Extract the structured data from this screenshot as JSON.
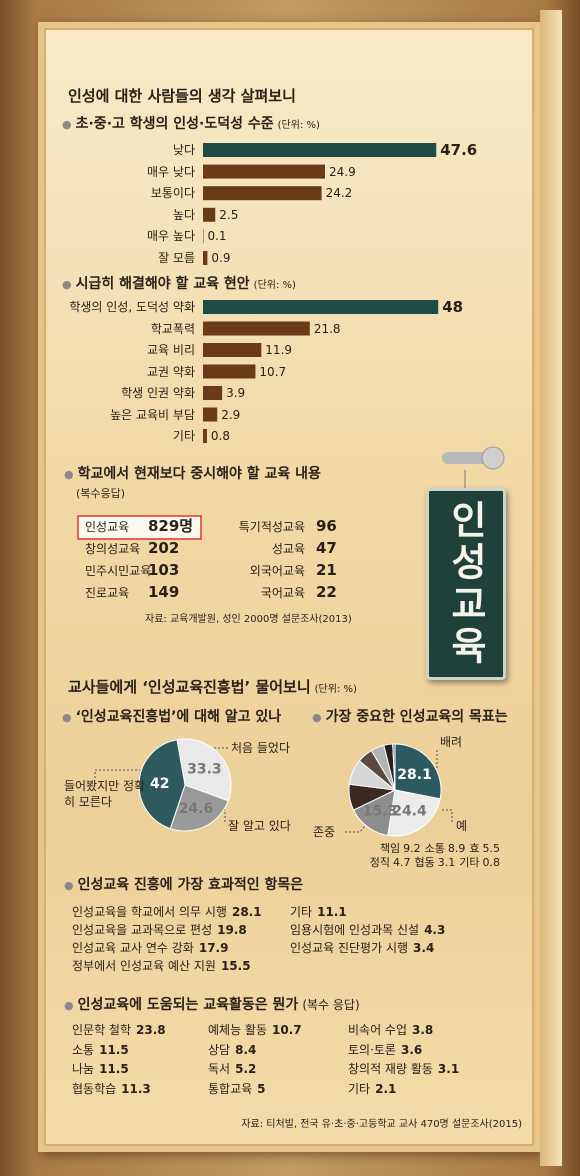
{
  "header": {
    "title": "인성에 대한 사람들의 생각 살펴보니",
    "subtitle": "교사들에게 ‘인성교육진흥법’ 물어보니",
    "subtitle_unit": "(단위: %)"
  },
  "chart_data": [
    {
      "type": "bar",
      "title": "초·중·고 학생의 인성·도덕성 수준",
      "unit": "(단위: %)",
      "categories": [
        "낮다",
        "매우 낮다",
        "보통이다",
        "높다",
        "매우 높다",
        "잘 모름"
      ],
      "values": [
        47.6,
        24.9,
        24.2,
        2.5,
        0.1,
        0.9
      ],
      "colors": [
        "#1f4d45",
        "#6b3a17",
        "#6b3a17",
        "#6b3a17",
        "#6b3a17",
        "#6b3a17"
      ]
    },
    {
      "type": "bar",
      "title": "시급히 해결해야 할 교육 현안",
      "unit": "(단위: %)",
      "categories": [
        "학생의 인성, 도덕성 약화",
        "학교폭력",
        "교육 비리",
        "교권 약화",
        "학생 인권 약화",
        "높은 교육비 부담",
        "기타"
      ],
      "values": [
        48,
        21.8,
        11.9,
        10.7,
        3.9,
        2.9,
        0.8
      ],
      "colors": [
        "#1f4d45",
        "#6b3a17",
        "#6b3a17",
        "#6b3a17",
        "#6b3a17",
        "#6b3a17",
        "#6b3a17"
      ]
    },
    {
      "type": "pie",
      "title": "‘인성교육진흥법’에 대해 알고 있나",
      "categories": [
        "처음 들었다",
        "잘 알고 있다",
        "들어봤지만 정확히 모른다"
      ],
      "values": [
        33.3,
        24.6,
        42
      ],
      "colors": [
        "#e9e9e9",
        "#9a9a9a",
        "#2d5a5e"
      ]
    },
    {
      "type": "pie",
      "title": "가장 중요한 인성교육의 목표는",
      "categories": [
        "배려",
        "예",
        "존중",
        "책임",
        "소통",
        "효",
        "정직",
        "협동",
        "기타"
      ],
      "values": [
        28.1,
        24.4,
        15.3,
        9.2,
        8.9,
        5.5,
        4.7,
        3.1,
        0.8
      ],
      "colors": [
        "#2d5a5e",
        "#ececec",
        "#8d8d8d",
        "#3a2a22",
        "#d6d6d6",
        "#5a4a42",
        "#b3b3b3",
        "#222222",
        "#777777"
      ]
    }
  ],
  "content_survey": {
    "title": "학교에서 현재보다 중시해야 할 교육 내용",
    "note": "(복수응답)",
    "items": [
      {
        "name": "인성교육",
        "value": "829명"
      },
      {
        "name": "창의성교육",
        "value": 202
      },
      {
        "name": "민주시민교육",
        "value": 103
      },
      {
        "name": "진로교육",
        "value": 149
      },
      {
        "name": "특기적성교육",
        "value": 96
      },
      {
        "name": "성교육",
        "value": 47
      },
      {
        "name": "외국어교육",
        "value": 21
      },
      {
        "name": "국어교육",
        "value": 22
      }
    ],
    "source": "자료: 교육개발원, 성인 2000명 설문조사(2013)"
  },
  "sign": "인성교육",
  "effective_items": {
    "title": "인성교육 진흥에 가장 효과적인 항목은",
    "items": [
      {
        "name": "인성교육을 학교에서 의무 시행",
        "value": 28.1
      },
      {
        "name": "인성교육을 교과목으로 편성",
        "value": 19.8
      },
      {
        "name": "인성교육 교사 연수 강화",
        "value": 17.9
      },
      {
        "name": "정부에서 인성교육 예산 지원",
        "value": 15.5
      },
      {
        "name": "기타",
        "value": 11.1
      },
      {
        "name": "임용시험에 인성과목 신설",
        "value": 4.3
      },
      {
        "name": "인성교육 진단평가 시행",
        "value": 3.4
      }
    ]
  },
  "activities": {
    "title": "인성교육에 도움되는 교육활동은 뭔가",
    "note": "(복수 응답)",
    "items": [
      {
        "name": "인문학 철학",
        "value": 23.8
      },
      {
        "name": "소통",
        "value": 11.5
      },
      {
        "name": "나눔",
        "value": 11.5
      },
      {
        "name": "협동학습",
        "value": 11.3
      },
      {
        "name": "예체능 활동",
        "value": 10.7
      },
      {
        "name": "상담",
        "value": 8.4
      },
      {
        "name": "독서",
        "value": 5.2
      },
      {
        "name": "통합교육",
        "value": 5
      },
      {
        "name": "비속어 수업",
        "value": 3.8
      },
      {
        "name": "토의·토론",
        "value": 3.6
      },
      {
        "name": "창의적 재량 활동",
        "value": 3.1
      },
      {
        "name": "기타",
        "value": 2.1
      }
    ],
    "source": "자료: 티처빌, 전국 유·초·중·고등학교 교사 470명 설문조사(2015)"
  }
}
